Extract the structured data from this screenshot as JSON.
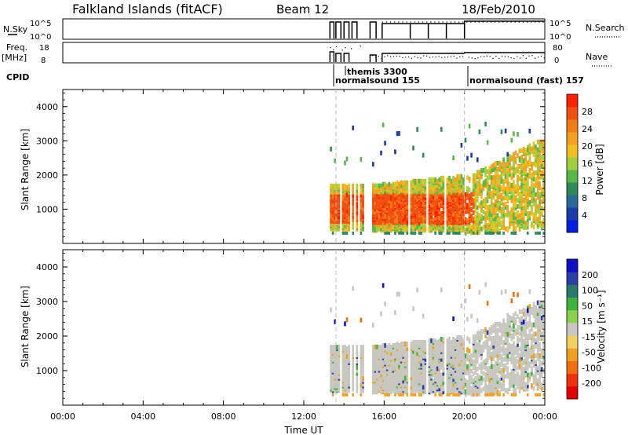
{
  "header": {
    "station": "Falkland Islands (fitACF)",
    "beam": "Beam 12",
    "date": "18/Feb/2010"
  },
  "panels": {
    "nsky_label": "N.Sky",
    "nsearch_label": "N.Search",
    "nsky_ticks": [
      "10^5",
      "10^0"
    ],
    "freq_label": "Freq.",
    "freq_unit": "[MHz]",
    "freq_ticks": [
      "18",
      "8"
    ],
    "nave_label": "Nave",
    "nave_ticks": [
      "80",
      "0"
    ],
    "cpid_label": "CPID",
    "cpid_modes": [
      {
        "label": "themis 3300",
        "start": 13.6
      },
      {
        "label": "normalsound 155",
        "start": 13.3
      },
      {
        "label": "normalsound (fast) 157",
        "start": 20.0
      }
    ]
  },
  "colors": {
    "power": [
      "#0020e0",
      "#1a3ca8",
      "#2a6a9a",
      "#2e8b57",
      "#56b848",
      "#a0d040",
      "#f0c020",
      "#f5a020",
      "#f07d15",
      "#f05010",
      "#ff2000"
    ],
    "velocity": [
      "#1010c0",
      "#2a3ea8",
      "#2a7a6a",
      "#3cb43c",
      "#8cd050",
      "#c8c8c0",
      "#f0d060",
      "#f0a020",
      "#f07010",
      "#f03010",
      "#e00000"
    ],
    "grey_scatter": "#c8c8c0"
  },
  "chart_data": [
    {
      "type": "heatmap",
      "name": "power",
      "xlabel": "",
      "ylabel": "Slant Range [km]",
      "xlim": [
        0,
        24
      ],
      "ylim": [
        0,
        4500
      ],
      "yticks": [
        "1000",
        "2000",
        "3000",
        "4000"
      ],
      "colorbar": {
        "label": "Power [dB]",
        "ticks": [
          "4",
          "8",
          "12",
          "16",
          "20",
          "24",
          "28"
        ]
      }
    },
    {
      "type": "heatmap",
      "name": "velocity",
      "xlabel": "Time UT",
      "ylabel": "Slant Range [km]",
      "xlim": [
        0,
        24
      ],
      "ylim": [
        0,
        4500
      ],
      "yticks": [
        "1000",
        "2000",
        "3000",
        "4000"
      ],
      "xticks": [
        "00:00",
        "04:00",
        "08:00",
        "12:00",
        "16:00",
        "20:00",
        "00:00"
      ],
      "colorbar": {
        "label": "Velocity [m s⁻¹]",
        "ticks": [
          "200",
          "100",
          "50",
          "15",
          "-15",
          "-50",
          "-100",
          "-200"
        ]
      }
    }
  ]
}
